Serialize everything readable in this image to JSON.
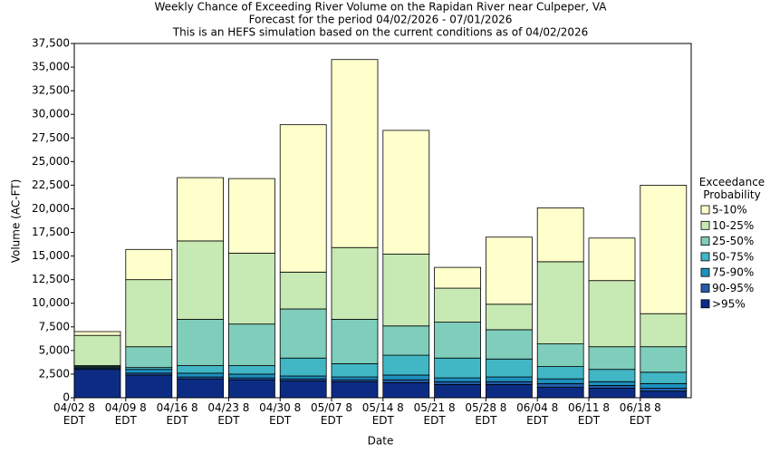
{
  "chart_data": {
    "type": "stacked_bar",
    "title": "Weekly Chance of Exceeding River Volume on the Rapidan River near Culpeper, VA",
    "subtitle": "Forecast for the period 04/02/2026 - 07/01/2026",
    "subtitle2": "This is an HEFS simulation based on the current conditions as of 04/02/2026",
    "xlabel": "Date",
    "ylabel": "Volume (AC-FT)",
    "legend_title": "Exceedance Probability",
    "legend": "right",
    "categories": [
      "04/02 8 EDT",
      "04/09 8 EDT",
      "04/16 8 EDT",
      "04/23 8 EDT",
      "04/30 8 EDT",
      "05/07 8 EDT",
      "05/14 8 EDT",
      "05/21 8 EDT",
      "05/28 8 EDT",
      "06/04 8 EDT",
      "06/11 8 EDT",
      "06/18 8 EDT"
    ],
    "series": [
      {
        "name": ">95%",
        "color": "#0c2c84",
        "values": [
          3000,
          2400,
          2000,
          1900,
          1800,
          1700,
          1600,
          1400,
          1400,
          1100,
          1000,
          700
        ]
      },
      {
        "name": "90-95%",
        "color": "#225ea8",
        "values": [
          100,
          200,
          200,
          200,
          200,
          200,
          300,
          300,
          300,
          400,
          300,
          300
        ]
      },
      {
        "name": "75-90%",
        "color": "#1d91c0",
        "values": [
          100,
          400,
          400,
          400,
          300,
          300,
          500,
          400,
          500,
          500,
          400,
          500
        ]
      },
      {
        "name": "50-75%",
        "color": "#41b6c4",
        "values": [
          100,
          200,
          800,
          900,
          1900,
          1400,
          2100,
          2100,
          1900,
          1300,
          1300,
          1200
        ]
      },
      {
        "name": "25-50%",
        "color": "#7fcdbb",
        "values": [
          100,
          2200,
          4900,
          4400,
          5200,
          4700,
          3100,
          3800,
          3100,
          2400,
          2400,
          2700
        ]
      },
      {
        "name": "10-25%",
        "color": "#c7e9b4",
        "values": [
          3200,
          7100,
          8300,
          7500,
          3900,
          7600,
          7600,
          3600,
          2700,
          8700,
          7000,
          3500
        ]
      },
      {
        "name": "5-10%",
        "color": "#ffffcc",
        "values": [
          400,
          3200,
          6700,
          7900,
          15600,
          19900,
          13100,
          2200,
          7100,
          5700,
          4500,
          13600
        ]
      }
    ],
    "ylim": [
      0,
      37500
    ],
    "yticks": [
      0,
      {
        "value": 2500,
        "label": "2,500"
      },
      {
        "value": 5000,
        "label": "5,000"
      },
      {
        "value": 7500,
        "label": "7,500"
      },
      {
        "value": 10000,
        "label": "10,000"
      },
      {
        "value": 12500,
        "label": "12,500"
      },
      {
        "value": 15000,
        "label": "15,000"
      },
      {
        "value": 17500,
        "label": "17,500"
      },
      {
        "value": 20000,
        "label": "20,000"
      },
      {
        "value": 22500,
        "label": "22,500"
      },
      {
        "value": 25000,
        "label": "25,000"
      },
      {
        "value": 27500,
        "label": "27,500"
      },
      {
        "value": 30000,
        "label": "30,000"
      },
      {
        "value": 32500,
        "label": "32,500"
      },
      {
        "value": 35000,
        "label": "35,000"
      },
      {
        "value": 37500,
        "label": "37,500"
      }
    ]
  }
}
